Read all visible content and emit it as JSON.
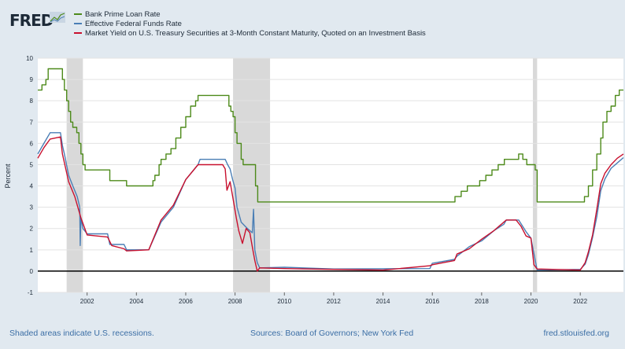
{
  "logo": {
    "text": "FRED"
  },
  "footer": {
    "recession_note": "Shaded areas indicate U.S. recessions.",
    "sources": "Sources: Board of Governors; New York Fed",
    "site": "fred.stlouisfed.org"
  },
  "colors": {
    "prime": "#4d8a1a",
    "fedfunds": "#4a7eb5",
    "tbill": "#c8102e",
    "recession": "#d9d9d9",
    "plot_bg": "#ffffff",
    "page_bg": "#e1e9f0"
  },
  "icons": {
    "logo_mark": "chart-line-icon"
  },
  "chart_data": {
    "type": "line",
    "xlabel": "",
    "ylabel": "Percent",
    "ylim": [
      -1,
      10
    ],
    "xlim": [
      2000.0,
      2023.75
    ],
    "yticks": [
      "-1",
      "0",
      "1",
      "2",
      "3",
      "4",
      "5",
      "6",
      "7",
      "8",
      "9",
      "10"
    ],
    "xticks": [
      "2002",
      "2004",
      "2006",
      "2008",
      "2010",
      "2012",
      "2014",
      "2016",
      "2018",
      "2020",
      "2022"
    ],
    "grid": "horizontal",
    "legend_position": "top-left",
    "recessions": [
      [
        2001.17,
        2001.83
      ],
      [
        2007.92,
        2009.42
      ],
      [
        2020.08,
        2020.25
      ]
    ],
    "series": [
      {
        "name": "Bank Prime Loan Rate",
        "x": [
          2000.0,
          2000.17,
          2000.33,
          2000.42,
          2000.5,
          2000.92,
          2001.0,
          2001.08,
          2001.17,
          2001.25,
          2001.33,
          2001.42,
          2001.58,
          2001.67,
          2001.75,
          2001.83,
          2001.92,
          2002.83,
          2002.92,
          2003.5,
          2003.6,
          2004.5,
          2004.67,
          2004.75,
          2004.92,
          2005.0,
          2005.2,
          2005.4,
          2005.6,
          2005.8,
          2006.0,
          2006.2,
          2006.4,
          2006.5,
          2006.6,
          2007.67,
          2007.75,
          2007.83,
          2007.92,
          2008.0,
          2008.08,
          2008.25,
          2008.33,
          2008.75,
          2008.83,
          2008.92,
          2015.92,
          2016.92,
          2017.17,
          2017.42,
          2017.92,
          2018.17,
          2018.42,
          2018.67,
          2018.92,
          2019.5,
          2019.67,
          2019.83,
          2020.17,
          2020.25,
          2021.92,
          2022.17,
          2022.33,
          2022.5,
          2022.67,
          2022.83,
          2022.92,
          2023.08,
          2023.25,
          2023.42,
          2023.58,
          2023.75
        ],
        "values": [
          8.5,
          8.75,
          9.0,
          9.5,
          9.5,
          9.5,
          9.0,
          8.5,
          8.0,
          7.5,
          7.0,
          6.75,
          6.5,
          6.0,
          5.5,
          5.0,
          4.75,
          4.75,
          4.25,
          4.25,
          4.0,
          4.0,
          4.25,
          4.5,
          5.0,
          5.25,
          5.5,
          5.75,
          6.25,
          6.75,
          7.25,
          7.75,
          8.0,
          8.25,
          8.25,
          8.25,
          7.75,
          7.5,
          7.25,
          6.5,
          6.0,
          5.25,
          5.0,
          5.0,
          4.0,
          3.25,
          3.25,
          3.5,
          3.75,
          4.0,
          4.25,
          4.5,
          4.75,
          5.0,
          5.25,
          5.5,
          5.25,
          5.0,
          4.75,
          3.25,
          3.25,
          3.5,
          4.0,
          4.75,
          5.5,
          6.25,
          7.0,
          7.5,
          7.75,
          8.25,
          8.5,
          8.5
        ]
      },
      {
        "name": "Effective Federal Funds Rate",
        "x": [
          2000.0,
          2000.25,
          2000.5,
          2000.92,
          2001.0,
          2001.08,
          2001.25,
          2001.42,
          2001.6,
          2001.7,
          2001.72,
          2001.75,
          2001.83,
          2002.0,
          2002.83,
          2002.92,
          2003.5,
          2003.6,
          2004.5,
          2005.0,
          2005.5,
          2006.0,
          2006.5,
          2006.58,
          2007.6,
          2007.7,
          2007.8,
          2007.9,
          2008.0,
          2008.08,
          2008.25,
          2008.5,
          2008.7,
          2008.75,
          2008.8,
          2008.9,
          2009.0,
          2010.0,
          2012.0,
          2015.9,
          2016.0,
          2016.9,
          2017.0,
          2017.5,
          2018.0,
          2018.5,
          2018.9,
          2019.0,
          2019.5,
          2019.8,
          2020.0,
          2020.15,
          2020.25,
          2022.0,
          2022.2,
          2022.33,
          2022.5,
          2022.67,
          2022.83,
          2023.0,
          2023.25,
          2023.5,
          2023.75
        ],
        "values": [
          5.5,
          6.0,
          6.5,
          6.5,
          5.9,
          5.5,
          4.5,
          4.0,
          3.5,
          3.0,
          1.2,
          2.5,
          2.0,
          1.75,
          1.75,
          1.25,
          1.25,
          1.0,
          1.0,
          2.3,
          3.0,
          4.3,
          5.0,
          5.25,
          5.25,
          5.0,
          4.8,
          4.3,
          3.9,
          3.0,
          2.3,
          2.0,
          1.8,
          2.9,
          1.0,
          0.4,
          0.15,
          0.18,
          0.1,
          0.12,
          0.37,
          0.55,
          0.7,
          1.15,
          1.42,
          1.9,
          2.2,
          2.4,
          2.4,
          1.85,
          1.55,
          0.65,
          0.05,
          0.08,
          0.33,
          0.77,
          1.58,
          2.56,
          3.78,
          4.33,
          4.83,
          5.08,
          5.33
        ]
      },
      {
        "name": "Market Yield on U.S. Treasury Securities at 3-Month Constant Maturity, Quoted on an Investment Basis",
        "x": [
          2000.0,
          2000.25,
          2000.5,
          2000.92,
          2001.0,
          2001.25,
          2001.5,
          2001.75,
          2002.0,
          2002.83,
          2003.0,
          2003.5,
          2003.6,
          2004.5,
          2005.0,
          2005.5,
          2006.0,
          2006.5,
          2007.5,
          2007.6,
          2007.67,
          2007.8,
          2007.95,
          2008.05,
          2008.15,
          2008.3,
          2008.45,
          2008.6,
          2008.72,
          2008.8,
          2008.9,
          2009.0,
          2010.0,
          2012.0,
          2014.0,
          2015.9,
          2016.0,
          2016.9,
          2017.0,
          2017.5,
          2018.0,
          2018.5,
          2019.0,
          2019.4,
          2019.6,
          2019.8,
          2020.0,
          2020.12,
          2020.25,
          2022.0,
          2022.2,
          2022.33,
          2022.5,
          2022.67,
          2022.83,
          2023.0,
          2023.25,
          2023.5,
          2023.75
        ],
        "values": [
          5.3,
          5.8,
          6.2,
          6.3,
          5.5,
          4.2,
          3.5,
          2.5,
          1.7,
          1.6,
          1.2,
          1.05,
          0.95,
          1.0,
          2.4,
          3.1,
          4.3,
          5.0,
          5.0,
          4.8,
          3.8,
          4.2,
          3.2,
          2.5,
          1.9,
          1.3,
          2.0,
          1.8,
          1.0,
          0.5,
          0.0,
          0.15,
          0.12,
          0.08,
          0.05,
          0.25,
          0.3,
          0.5,
          0.8,
          1.05,
          1.5,
          1.9,
          2.4,
          2.4,
          2.1,
          1.65,
          1.55,
          0.3,
          0.1,
          0.05,
          0.4,
          0.9,
          1.7,
          2.9,
          4.1,
          4.6,
          5.0,
          5.3,
          5.5
        ]
      }
    ]
  }
}
